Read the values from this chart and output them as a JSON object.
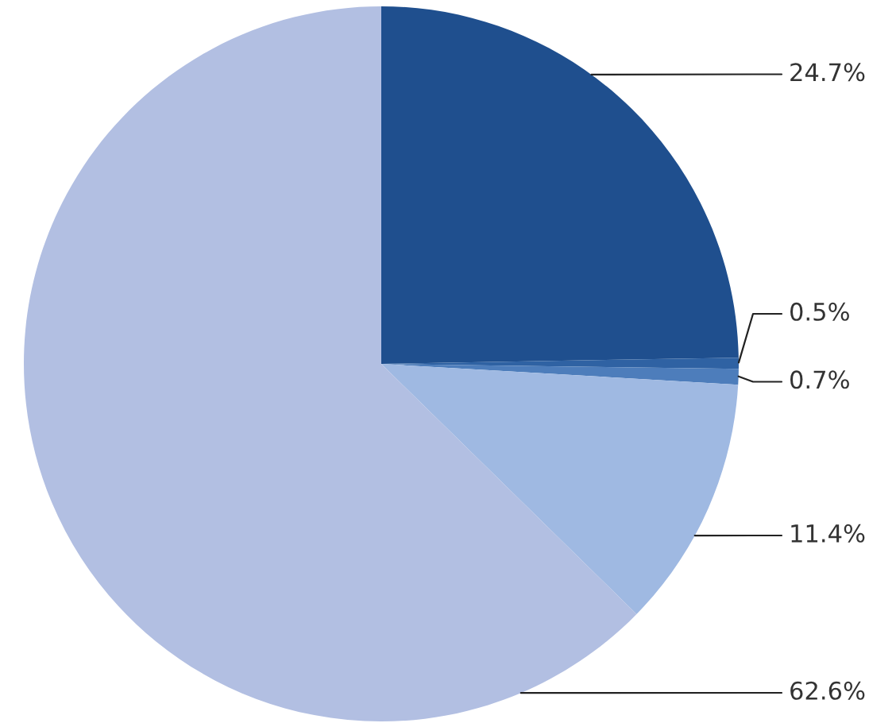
{
  "chart_data": {
    "type": "pie",
    "categories": [
      null,
      null,
      null,
      null,
      null
    ],
    "values": [
      24.7,
      0.5,
      0.7,
      11.4,
      62.6
    ],
    "colors": [
      "#1f4f8e",
      "#2f62a3",
      "#4d7dbb",
      "#9fb9e2",
      "#b2bfe2"
    ],
    "value_labels": [
      "24.7%",
      "0.5%",
      "0.7%",
      "11.4%",
      "62.6%"
    ]
  }
}
